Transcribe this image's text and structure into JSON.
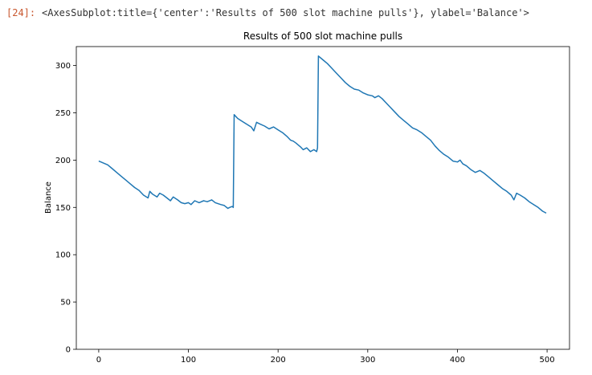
{
  "notebook": {
    "prompt": "[24]:",
    "output_text": "<AxesSubplot:title={'center':'Results of 500 slot machine pulls'}, ylabel='Balance'>"
  },
  "colors": {
    "line": "#1f77b4",
    "prompt": "#c8572e",
    "axis": "#000000"
  },
  "chart_data": {
    "type": "line",
    "title": "Results of 500 slot machine pulls",
    "xlabel": "",
    "ylabel": "Balance",
    "xlim": [
      -25,
      525
    ],
    "ylim": [
      0,
      320
    ],
    "xticks": [
      0,
      100,
      200,
      300,
      400,
      500
    ],
    "yticks": [
      0,
      50,
      100,
      150,
      200,
      250,
      300
    ],
    "grid": false,
    "legend": "none",
    "series": [
      {
        "points": [
          [
            0,
            199
          ],
          [
            5,
            197
          ],
          [
            10,
            195
          ],
          [
            15,
            191
          ],
          [
            20,
            187
          ],
          [
            25,
            183
          ],
          [
            30,
            179
          ],
          [
            35,
            175
          ],
          [
            40,
            171
          ],
          [
            45,
            168
          ],
          [
            50,
            163
          ],
          [
            55,
            160
          ],
          [
            57,
            167
          ],
          [
            60,
            164
          ],
          [
            65,
            161
          ],
          [
            68,
            165
          ],
          [
            72,
            163
          ],
          [
            76,
            160
          ],
          [
            80,
            157
          ],
          [
            83,
            161
          ],
          [
            88,
            158
          ],
          [
            92,
            155
          ],
          [
            96,
            154
          ],
          [
            100,
            155
          ],
          [
            103,
            153
          ],
          [
            107,
            157
          ],
          [
            112,
            155
          ],
          [
            117,
            157
          ],
          [
            121,
            156
          ],
          [
            126,
            158
          ],
          [
            130,
            155
          ],
          [
            136,
            153
          ],
          [
            140,
            152
          ],
          [
            144,
            149
          ],
          [
            146,
            150
          ],
          [
            149,
            151
          ],
          [
            150,
            150
          ],
          [
            151,
            248
          ],
          [
            155,
            244
          ],
          [
            160,
            241
          ],
          [
            165,
            238
          ],
          [
            170,
            235
          ],
          [
            173,
            231
          ],
          [
            176,
            240
          ],
          [
            180,
            238
          ],
          [
            185,
            236
          ],
          [
            190,
            233
          ],
          [
            195,
            235
          ],
          [
            200,
            232
          ],
          [
            205,
            229
          ],
          [
            210,
            225
          ],
          [
            214,
            221
          ],
          [
            217,
            220
          ],
          [
            220,
            218
          ],
          [
            225,
            214
          ],
          [
            228,
            211
          ],
          [
            232,
            213
          ],
          [
            236,
            209
          ],
          [
            240,
            211
          ],
          [
            243,
            209
          ],
          [
            244,
            213
          ],
          [
            245,
            310
          ],
          [
            250,
            306
          ],
          [
            255,
            302
          ],
          [
            260,
            297
          ],
          [
            265,
            292
          ],
          [
            270,
            287
          ],
          [
            275,
            282
          ],
          [
            280,
            278
          ],
          [
            285,
            275
          ],
          [
            290,
            274
          ],
          [
            295,
            271
          ],
          [
            300,
            269
          ],
          [
            305,
            268
          ],
          [
            308,
            266
          ],
          [
            312,
            268
          ],
          [
            316,
            265
          ],
          [
            320,
            261
          ],
          [
            325,
            256
          ],
          [
            330,
            251
          ],
          [
            335,
            246
          ],
          [
            340,
            242
          ],
          [
            345,
            238
          ],
          [
            350,
            234
          ],
          [
            355,
            232
          ],
          [
            360,
            229
          ],
          [
            365,
            225
          ],
          [
            370,
            221
          ],
          [
            375,
            215
          ],
          [
            380,
            210
          ],
          [
            385,
            206
          ],
          [
            390,
            203
          ],
          [
            395,
            199
          ],
          [
            400,
            198
          ],
          [
            403,
            200
          ],
          [
            406,
            196
          ],
          [
            410,
            194
          ],
          [
            415,
            190
          ],
          [
            420,
            187
          ],
          [
            425,
            189
          ],
          [
            430,
            186
          ],
          [
            435,
            182
          ],
          [
            440,
            178
          ],
          [
            445,
            174
          ],
          [
            450,
            170
          ],
          [
            455,
            167
          ],
          [
            460,
            163
          ],
          [
            463,
            158
          ],
          [
            466,
            165
          ],
          [
            470,
            163
          ],
          [
            475,
            160
          ],
          [
            480,
            156
          ],
          [
            485,
            153
          ],
          [
            490,
            150
          ],
          [
            495,
            146
          ],
          [
            499,
            144
          ]
        ]
      }
    ]
  }
}
